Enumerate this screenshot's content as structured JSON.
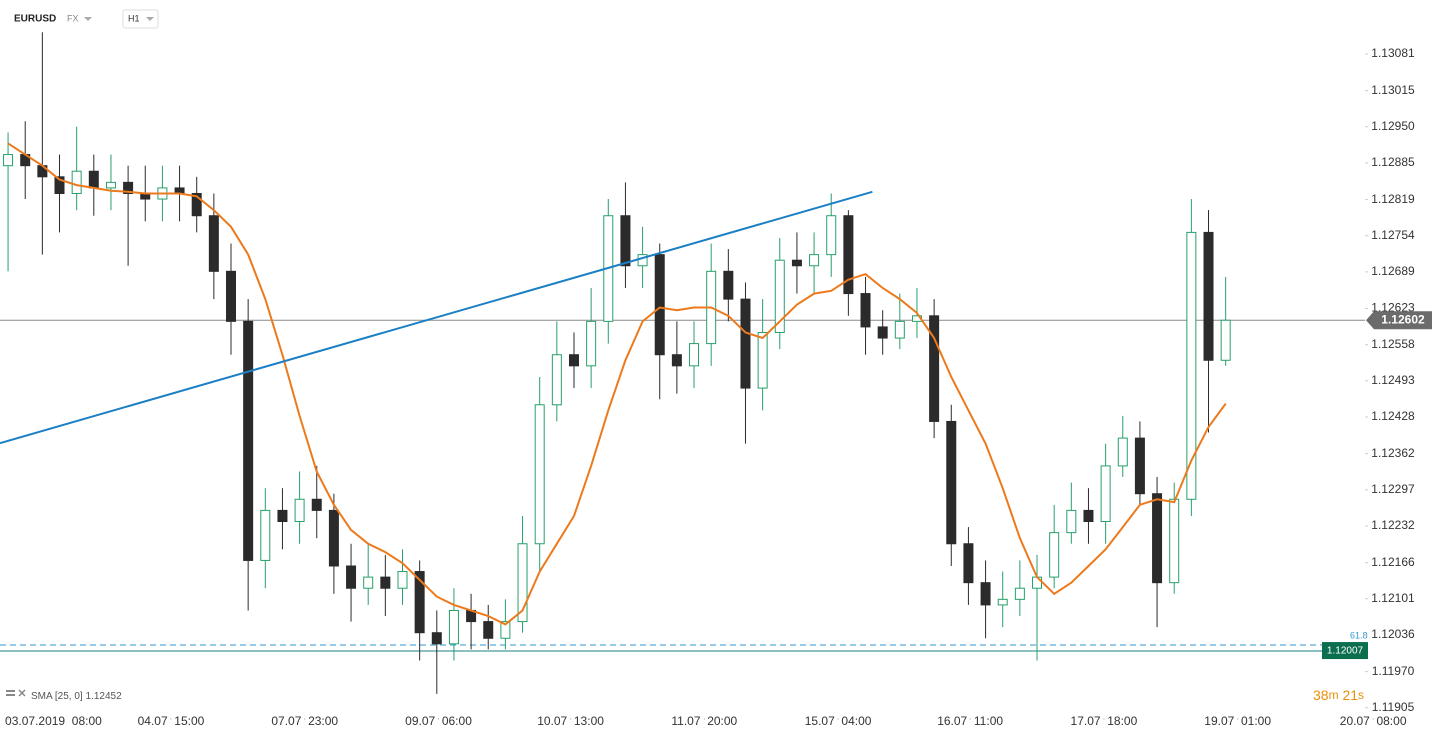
{
  "chart_data": {
    "type": "candlestick",
    "symbol": "EURUSD",
    "market": "FX",
    "interval": "H1",
    "up_color": "#26a069",
    "down_color": "#2b2b2b",
    "open": [
      1.1288,
      1.129,
      1.1288,
      1.1286,
      1.1283,
      1.1287,
      1.1284,
      1.1285,
      1.1283,
      1.1282,
      1.1284,
      1.1283,
      1.1279,
      1.1269,
      1.126,
      1.1217,
      1.1226,
      1.1224,
      1.1228,
      1.1226,
      1.1216,
      1.1212,
      1.1214,
      1.1212,
      1.1215,
      1.1204,
      1.1202,
      1.1208,
      1.1206,
      1.1203,
      1.1206,
      1.122,
      1.1245,
      1.1254,
      1.1252,
      1.126,
      1.1279,
      1.127,
      1.1272,
      1.1254,
      1.1252,
      1.1256,
      1.1269,
      1.1264,
      1.1248,
      1.1258,
      1.1271,
      1.127,
      1.1272,
      1.1279,
      1.1265,
      1.1259,
      1.1257,
      1.126,
      1.1261,
      1.1242,
      1.122,
      1.1213,
      1.1209,
      1.121,
      1.1212,
      1.1214,
      1.1222,
      1.1226,
      1.1224,
      1.1234,
      1.1239,
      1.1229,
      1.1213,
      1.1228,
      1.1276,
      1.1253
    ],
    "high": [
      1.1294,
      1.1296,
      1.1312,
      1.129,
      1.1295,
      1.129,
      1.129,
      1.1288,
      1.1288,
      1.1288,
      1.1288,
      1.1286,
      1.1283,
      1.1274,
      1.1264,
      1.123,
      1.123,
      1.1233,
      1.1234,
      1.1229,
      1.122,
      1.122,
      1.1218,
      1.1219,
      1.1217,
      1.1208,
      1.1212,
      1.1211,
      1.1209,
      1.121,
      1.1225,
      1.125,
      1.126,
      1.1258,
      1.1266,
      1.1282,
      1.1285,
      1.1277,
      1.1274,
      1.126,
      1.126,
      1.1274,
      1.1273,
      1.1267,
      1.1264,
      1.1275,
      1.1276,
      1.1276,
      1.1283,
      1.128,
      1.1268,
      1.1262,
      1.1265,
      1.1266,
      1.1264,
      1.1245,
      1.1223,
      1.1217,
      1.1215,
      1.1217,
      1.1218,
      1.1227,
      1.1231,
      1.123,
      1.1238,
      1.1243,
      1.1242,
      1.1232,
      1.1231,
      1.1282,
      1.128,
      1.1268
    ],
    "low": [
      1.1269,
      1.1282,
      1.1272,
      1.1276,
      1.128,
      1.1279,
      1.128,
      1.127,
      1.1278,
      1.1278,
      1.1278,
      1.1276,
      1.1264,
      1.1254,
      1.1208,
      1.1212,
      1.1219,
      1.122,
      1.1221,
      1.1211,
      1.1206,
      1.1209,
      1.1207,
      1.1209,
      1.1199,
      1.1193,
      1.1199,
      1.1201,
      1.1201,
      1.1201,
      1.1204,
      1.1215,
      1.1242,
      1.1248,
      1.1248,
      1.1256,
      1.1266,
      1.1266,
      1.1246,
      1.1247,
      1.1248,
      1.1252,
      1.126,
      1.1238,
      1.1244,
      1.1255,
      1.1265,
      1.1265,
      1.1268,
      1.1261,
      1.1254,
      1.1254,
      1.1255,
      1.1257,
      1.1239,
      1.1216,
      1.1209,
      1.1203,
      1.1205,
      1.1207,
      1.1199,
      1.1212,
      1.122,
      1.122,
      1.122,
      1.1232,
      1.1227,
      1.1205,
      1.1211,
      1.1225,
      1.124,
      1.1252
    ],
    "close": [
      1.129,
      1.1288,
      1.1286,
      1.1283,
      1.1287,
      1.1284,
      1.1285,
      1.1283,
      1.1282,
      1.1284,
      1.1283,
      1.1279,
      1.1269,
      1.126,
      1.1217,
      1.1226,
      1.1224,
      1.1228,
      1.1226,
      1.1216,
      1.1212,
      1.1214,
      1.1212,
      1.1215,
      1.1204,
      1.1202,
      1.1208,
      1.1206,
      1.1203,
      1.1206,
      1.122,
      1.1245,
      1.1254,
      1.1252,
      1.126,
      1.1279,
      1.127,
      1.1272,
      1.1254,
      1.1252,
      1.1256,
      1.1269,
      1.1264,
      1.1248,
      1.1258,
      1.1271,
      1.127,
      1.1272,
      1.1279,
      1.1265,
      1.1259,
      1.1257,
      1.126,
      1.1261,
      1.1242,
      1.122,
      1.1213,
      1.1209,
      1.121,
      1.1212,
      1.1214,
      1.1222,
      1.1226,
      1.1224,
      1.1234,
      1.1239,
      1.1229,
      1.1213,
      1.1228,
      1.1276,
      1.1253,
      1.12602
    ],
    "series": [
      {
        "name": "SMA",
        "params": "[25, 0]",
        "color": "#ec7a1c",
        "values": [
          1.1292,
          1.129,
          1.1288,
          1.12855,
          1.12845,
          1.1284,
          1.12835,
          1.12833,
          1.1283,
          1.1283,
          1.1283,
          1.12825,
          1.128,
          1.1277,
          1.1272,
          1.1264,
          1.1254,
          1.1243,
          1.1233,
          1.1227,
          1.12225,
          1.122,
          1.12185,
          1.12165,
          1.12135,
          1.12105,
          1.1209,
          1.1208,
          1.1207,
          1.12055,
          1.1208,
          1.1215,
          1.122,
          1.1225,
          1.1234,
          1.1244,
          1.1253,
          1.126,
          1.12625,
          1.1262,
          1.12625,
          1.12625,
          1.1261,
          1.1258,
          1.1257,
          1.126,
          1.1263,
          1.1265,
          1.12655,
          1.12675,
          1.12685,
          1.1266,
          1.1264,
          1.12615,
          1.1257,
          1.125,
          1.1244,
          1.1238,
          1.123,
          1.1221,
          1.1214,
          1.1211,
          1.1213,
          1.1216,
          1.1219,
          1.1223,
          1.1227,
          1.1228,
          1.12275,
          1.1235,
          1.1241,
          1.12452
        ]
      }
    ],
    "trendline": {
      "x": [
        -0.47,
        50.4
      ],
      "y": [
        1.12381,
        1.12833
      ],
      "color": "#1b7fc4"
    },
    "current_price": 1.12602,
    "fib_ratio": 61.8,
    "fib_price": 1.12018,
    "support_price": 1.12007,
    "countdown": [
      "38",
      "m",
      "21",
      "s"
    ],
    "xlim": [
      -0.47,
      83.44
    ],
    "ylim": [
      1.11883,
      1.13178
    ],
    "xticks": [
      {
        "value": 0,
        "label": "03.07.2019  08:00"
      },
      {
        "value": 9.5,
        "label": "04.07  15:00"
      },
      {
        "value": 17.3,
        "label": "07.07  23:00"
      },
      {
        "value": 25.1,
        "label": "09.07  06:00"
      },
      {
        "value": 32.8,
        "label": "10.07  13:00"
      },
      {
        "value": 40.6,
        "label": "11.07  20:00"
      },
      {
        "value": 48.4,
        "label": "15.07  04:00"
      },
      {
        "value": 56.1,
        "label": "16.07  11:00"
      },
      {
        "value": 63.9,
        "label": "17.07  18:00"
      },
      {
        "value": 71.7,
        "label": "19.07  01:00"
      },
      {
        "value": 79.6,
        "label": "20.07  08:00"
      }
    ],
    "yticks": [
      1.13081,
      1.13015,
      {
        "value": 1.1295,
        "label": "1.12950"
      },
      1.12885,
      1.12819,
      1.12754,
      1.12689,
      1.12623,
      1.12558,
      1.12493,
      1.12428,
      1.12362,
      1.12297,
      1.12232,
      1.12166,
      1.12101,
      1.12036,
      {
        "value": 1.1197,
        "label": "1.11970"
      },
      1.11905
    ]
  }
}
